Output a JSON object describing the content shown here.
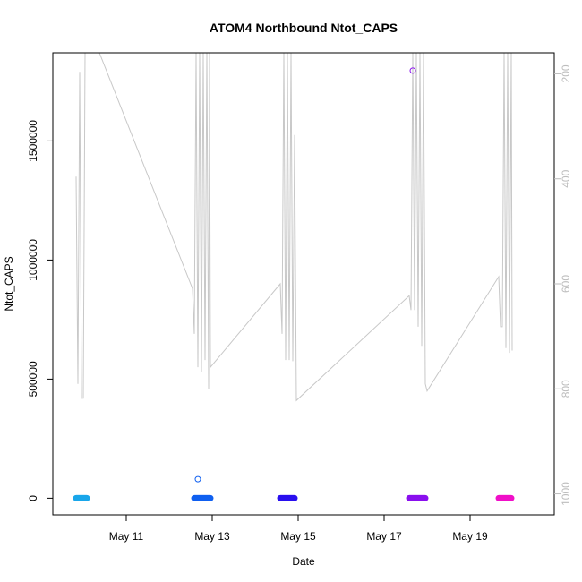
{
  "chart_data": {
    "type": "scatter",
    "title": "ATOM4 Northbound Ntot_CAPS",
    "xlabel": "Date",
    "ylabel": "Ntot_CAPS",
    "xlim": [
      "2023-05-09T07:00",
      "2023-05-20T23:00"
    ],
    "ylim": [
      -70000,
      1870000
    ],
    "y2lim": [
      1040,
      160
    ],
    "x_tick_labels": [
      {
        "date": "2023-05-11",
        "label": "May 11"
      },
      {
        "date": "2023-05-13",
        "label": "May 13"
      },
      {
        "date": "2023-05-15",
        "label": "May 15"
      },
      {
        "date": "2023-05-17",
        "label": "May 17"
      },
      {
        "date": "2023-05-19",
        "label": "May 19"
      }
    ],
    "y_ticks": [
      0,
      500000,
      1000000,
      1500000
    ],
    "y_tick_labels": [
      "0",
      "500000",
      "1000000",
      "1500000"
    ],
    "y2_ticks": [
      200,
      400,
      600,
      800,
      1000
    ],
    "y2_tick_labels": [
      "200",
      "400",
      "600",
      "800",
      "1000"
    ],
    "line_color": "#c8c8c8",
    "point_series": [
      {
        "from": "2023-05-09T20:00",
        "to": "2023-05-10T02:00",
        "y": 0,
        "color": "#1aa6ea"
      },
      {
        "from": "2023-05-12T14:00",
        "to": "2023-05-12T23:00",
        "y": 0,
        "color": "#1060f0"
      },
      {
        "from": "2023-05-14T14:00",
        "to": "2023-05-14T22:00",
        "y": 0,
        "color": "#2a10ef"
      },
      {
        "from": "2023-05-17T14:00",
        "to": "2023-05-17T23:00",
        "y": 0,
        "color": "#8a10ee"
      },
      {
        "from": "2023-05-19T16:00",
        "to": "2023-05-19T23:00",
        "y": 0,
        "color": "#f010c8"
      }
    ],
    "outlier_points": [
      {
        "x": "2023-05-12T16:00",
        "y": 80000,
        "color": "#1060f0"
      },
      {
        "x": "2023-05-17T16:00",
        "y": 1795000,
        "color": "#8a10ee"
      }
    ],
    "line_points": [
      [
        "2023-05-09T20:00",
        1350000
      ],
      [
        "2023-05-09T21:00",
        480000
      ],
      [
        "2023-05-09T22:00",
        1790000
      ],
      [
        "2023-05-09T23:00",
        420000
      ],
      [
        "2023-05-10T00:00",
        420000
      ],
      [
        "2023-05-10T01:00",
        1900000
      ],
      [
        "2023-05-10T09:00",
        1880000
      ],
      [
        "2023-05-12T13:00",
        880000
      ],
      [
        "2023-05-12T14:00",
        690000
      ],
      [
        "2023-05-12T15:00",
        1900000
      ],
      [
        "2023-05-12T16:00",
        550000
      ],
      [
        "2023-05-12T17:00",
        1900000
      ],
      [
        "2023-05-12T18:00",
        530000
      ],
      [
        "2023-05-12T19:00",
        1900000
      ],
      [
        "2023-05-12T20:00",
        580000
      ],
      [
        "2023-05-12T21:00",
        1900000
      ],
      [
        "2023-05-12T22:00",
        460000
      ],
      [
        "2023-05-12T22:30",
        1900000
      ],
      [
        "2023-05-12T23:00",
        550000
      ],
      [
        "2023-05-14T14:00",
        900000
      ],
      [
        "2023-05-14T15:00",
        690000
      ],
      [
        "2023-05-14T16:00",
        1900000
      ],
      [
        "2023-05-14T17:00",
        580000
      ],
      [
        "2023-05-14T18:00",
        1900000
      ],
      [
        "2023-05-14T19:00",
        580000
      ],
      [
        "2023-05-14T20:00",
        1900000
      ],
      [
        "2023-05-14T21:00",
        575000
      ],
      [
        "2023-05-14T22:00",
        1525000
      ],
      [
        "2023-05-14T23:00",
        410000
      ],
      [
        "2023-05-17T14:00",
        850000
      ],
      [
        "2023-05-17T15:00",
        790000
      ],
      [
        "2023-05-17T16:00",
        1900000
      ],
      [
        "2023-05-17T17:00",
        790000
      ],
      [
        "2023-05-17T18:00",
        1900000
      ],
      [
        "2023-05-17T19:00",
        720000
      ],
      [
        "2023-05-17T20:00",
        1900000
      ],
      [
        "2023-05-17T21:00",
        640000
      ],
      [
        "2023-05-17T22:00",
        1900000
      ],
      [
        "2023-05-17T23:00",
        480000
      ],
      [
        "2023-05-18T00:00",
        450000
      ],
      [
        "2023-05-19T16:00",
        930000
      ],
      [
        "2023-05-19T17:00",
        720000
      ],
      [
        "2023-05-19T18:00",
        720000
      ],
      [
        "2023-05-19T19:00",
        1900000
      ],
      [
        "2023-05-19T20:00",
        630000
      ],
      [
        "2023-05-19T21:00",
        1900000
      ],
      [
        "2023-05-19T22:00",
        610000
      ],
      [
        "2023-05-19T23:00",
        1900000
      ],
      [
        "2023-05-19T23:30",
        620000
      ]
    ]
  }
}
